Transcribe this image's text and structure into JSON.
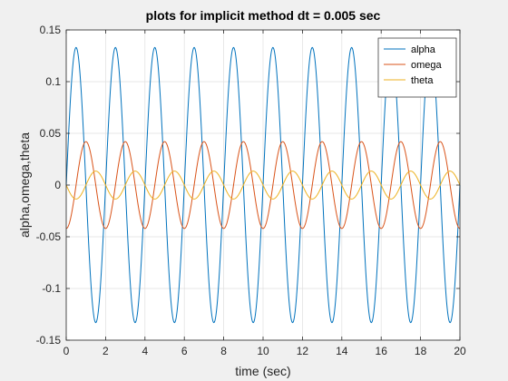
{
  "chart_data": {
    "type": "line",
    "title": "plots for implicit method dt = 0.005 sec",
    "xlabel": "time (sec)",
    "ylabel": "alpha,omega,theta",
    "xlim": [
      0,
      20
    ],
    "ylim": [
      -0.15,
      0.15
    ],
    "xticks": [
      "0",
      "2",
      "4",
      "6",
      "8",
      "10",
      "12",
      "14",
      "16",
      "18",
      "20"
    ],
    "yticks": [
      "-0.15",
      "-0.1",
      "-0.05",
      "0",
      "0.05",
      "0.1",
      "0.15"
    ],
    "grid": true,
    "legend_position": "top-right",
    "series": [
      {
        "name": "alpha",
        "color": "#0072BD",
        "amplitude": 0.133,
        "period_sec": 2.0,
        "value_at_0": 0.0,
        "phase": "sine"
      },
      {
        "name": "omega",
        "color": "#D95319",
        "amplitude": 0.042,
        "period_sec": 2.0,
        "value_at_0": -0.042,
        "phase": "negative-cosine"
      },
      {
        "name": "theta",
        "color": "#EDB120",
        "amplitude": 0.0135,
        "period_sec": 2.0,
        "value_at_0": 0.0,
        "phase": "negative-sine"
      }
    ]
  }
}
